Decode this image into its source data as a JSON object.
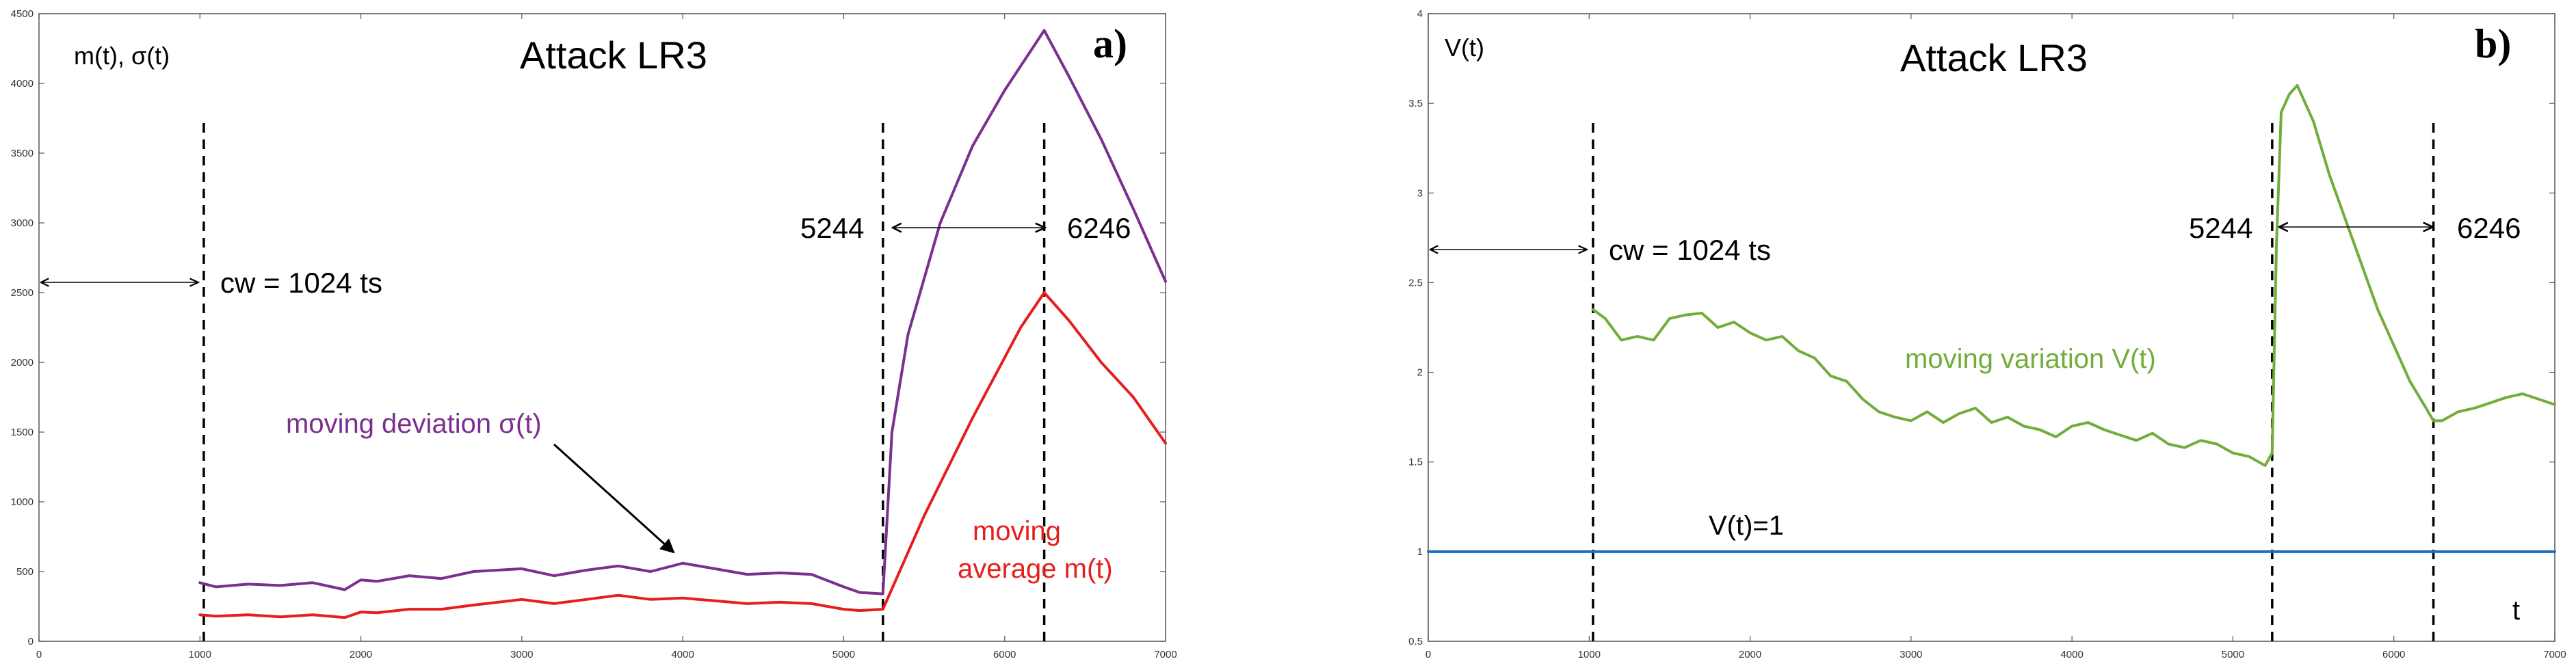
{
  "chart_data": [
    {
      "type": "line",
      "panel_label": "a)",
      "title": "Attack LR3",
      "ylabel": "m(t), σ(t)",
      "xlabel": "",
      "xlim": [
        0,
        7000
      ],
      "ylim": [
        0,
        4500
      ],
      "x_ticks": [
        0,
        1000,
        2000,
        3000,
        4000,
        5000,
        6000,
        7000
      ],
      "y_ticks": [
        0,
        500,
        1000,
        1500,
        2000,
        2500,
        3000,
        3500,
        4000,
        4500
      ],
      "vlines": [
        1024,
        5244,
        6246
      ],
      "series": [
        {
          "name": "moving deviation σ(t)",
          "color": "#7b2f8e",
          "x": [
            1000,
            1100,
            1300,
            1500,
            1700,
            1900,
            2000,
            2100,
            2300,
            2500,
            2700,
            3000,
            3200,
            3400,
            3600,
            3800,
            4000,
            4200,
            4400,
            4600,
            4800,
            5000,
            5100,
            5244,
            5300,
            5400,
            5600,
            5800,
            6000,
            6246,
            6400,
            6600,
            6800,
            7000
          ],
          "values": [
            420,
            390,
            410,
            400,
            420,
            370,
            440,
            430,
            470,
            450,
            500,
            520,
            470,
            510,
            540,
            500,
            560,
            520,
            480,
            490,
            480,
            390,
            350,
            340,
            1500,
            2200,
            3000,
            3550,
            3950,
            4380,
            4050,
            3600,
            3100,
            2580
          ]
        },
        {
          "name": "moving average m(t)",
          "color": "#e51e1e",
          "x": [
            1000,
            1100,
            1300,
            1500,
            1700,
            1900,
            2000,
            2100,
            2300,
            2500,
            2700,
            3000,
            3200,
            3400,
            3600,
            3800,
            4000,
            4200,
            4400,
            4600,
            4800,
            5000,
            5100,
            5244,
            5500,
            5800,
            6100,
            6246,
            6400,
            6600,
            6800,
            7000
          ],
          "values": [
            190,
            180,
            190,
            175,
            190,
            170,
            210,
            205,
            230,
            230,
            260,
            300,
            270,
            300,
            330,
            300,
            310,
            290,
            270,
            280,
            270,
            230,
            220,
            230,
            900,
            1600,
            2250,
            2500,
            2300,
            2000,
            1750,
            1420
          ]
        }
      ],
      "annotations": {
        "cw": "cw = 1024 ts",
        "start": "5244",
        "end": "6246",
        "deviation_label": "moving deviation σ(t)",
        "average_label_1": "moving",
        "average_label_2": "average m(t)"
      }
    },
    {
      "type": "line",
      "panel_label": "b)",
      "title": "Attack LR3",
      "ylabel": "V(t)",
      "xlabel": "t",
      "xlim": [
        0,
        7000
      ],
      "ylim": [
        0.5,
        4
      ],
      "x_ticks": [
        0,
        1000,
        2000,
        3000,
        4000,
        5000,
        6000,
        7000
      ],
      "y_ticks": [
        0.5,
        1,
        1.5,
        2,
        2.5,
        3,
        3.5,
        4
      ],
      "vlines": [
        1024,
        5244,
        6246
      ],
      "series": [
        {
          "name": "moving variation V(t)",
          "color": "#72ad3c",
          "x": [
            1024,
            1100,
            1200,
            1300,
            1400,
            1500,
            1600,
            1700,
            1800,
            1900,
            2000,
            2100,
            2200,
            2300,
            2400,
            2500,
            2600,
            2700,
            2800,
            2900,
            3000,
            3100,
            3200,
            3300,
            3400,
            3500,
            3600,
            3700,
            3800,
            3900,
            4000,
            4100,
            4200,
            4300,
            4400,
            4500,
            4600,
            4700,
            4800,
            4900,
            5000,
            5100,
            5200,
            5244,
            5270,
            5300,
            5350,
            5400,
            5500,
            5600,
            5700,
            5800,
            5900,
            6000,
            6100,
            6200,
            6246,
            6300,
            6400,
            6500,
            6600,
            6700,
            6800,
            6900,
            7000
          ],
          "values": [
            2.35,
            2.3,
            2.18,
            2.2,
            2.18,
            2.3,
            2.32,
            2.33,
            2.25,
            2.28,
            2.22,
            2.18,
            2.2,
            2.12,
            2.08,
            1.98,
            1.95,
            1.85,
            1.78,
            1.75,
            1.73,
            1.78,
            1.72,
            1.77,
            1.8,
            1.72,
            1.75,
            1.7,
            1.68,
            1.64,
            1.7,
            1.72,
            1.68,
            1.65,
            1.62,
            1.66,
            1.6,
            1.58,
            1.62,
            1.6,
            1.55,
            1.53,
            1.48,
            1.55,
            2.7,
            3.45,
            3.55,
            3.6,
            3.4,
            3.1,
            2.85,
            2.6,
            2.35,
            2.15,
            1.95,
            1.8,
            1.73,
            1.73,
            1.78,
            1.8,
            1.83,
            1.86,
            1.88,
            1.85,
            1.82
          ]
        },
        {
          "name": "V(t)=1",
          "color": "#1f6fbf",
          "x": [
            0,
            7000
          ],
          "values": [
            1,
            1
          ]
        }
      ],
      "annotations": {
        "cw": "cw = 1024 ts",
        "start": "5244",
        "end": "6246",
        "variation_label": "moving variation V(t)",
        "baseline_label": "V(t)=1",
        "t_label": "t"
      }
    }
  ]
}
